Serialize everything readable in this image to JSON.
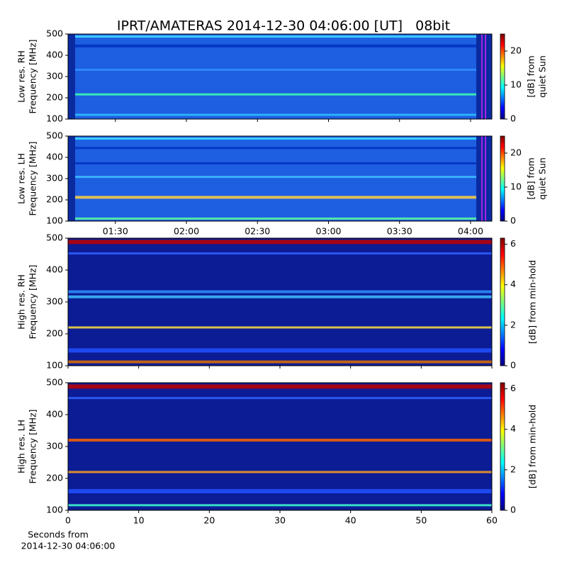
{
  "title": "IPRT/AMATERAS 2014-12-30 04:06:00 [UT]   08bit",
  "chart_data": [
    {
      "type": "spectrogram",
      "ylabel": [
        "Low res. RH",
        "Frequency [MHz]"
      ],
      "ylim": [
        100,
        500
      ],
      "yticks": [
        100,
        200,
        300,
        400,
        500
      ],
      "xlim": [
        70,
        249
      ],
      "xticks": [
        90,
        120,
        150,
        180,
        210,
        240
      ],
      "xtick_labels": false,
      "colorbar": {
        "label": [
          "[dB] from",
          "quiet Sun"
        ],
        "lim": [
          0,
          25
        ],
        "ticks": [
          0,
          10,
          20
        ]
      }
    },
    {
      "type": "spectrogram",
      "ylabel": [
        "Low res. LH",
        "Frequency [MHz]"
      ],
      "ylim": [
        100,
        500
      ],
      "yticks": [
        100,
        200,
        300,
        400,
        500
      ],
      "xlim": [
        70,
        249
      ],
      "xticks": [
        {
          "value": 90,
          "label": "01:30"
        },
        {
          "value": 120,
          "label": "02:00"
        },
        {
          "value": 150,
          "label": "02:30"
        },
        {
          "value": 180,
          "label": "03:00"
        },
        {
          "value": 210,
          "label": "03:30"
        },
        {
          "value": 240,
          "label": "04:00"
        }
      ],
      "xtick_labels": true,
      "colorbar": {
        "label": [
          "[dB] from",
          "quiet Sun"
        ],
        "lim": [
          0,
          25
        ],
        "ticks": [
          0,
          10,
          20
        ]
      }
    },
    {
      "type": "spectrogram",
      "ylabel": [
        "High res. RH",
        "Frequency [MHz]"
      ],
      "ylim": [
        100,
        500
      ],
      "yticks": [
        100,
        200,
        300,
        400,
        500
      ],
      "xlim": [
        0,
        60
      ],
      "xticks": [
        0,
        10,
        20,
        30,
        40,
        50,
        60
      ],
      "xtick_labels": false,
      "colorbar": {
        "label": [
          "[dB] from min-hold"
        ],
        "lim": [
          0,
          6.3
        ],
        "ticks": [
          0,
          2,
          4,
          6
        ]
      }
    },
    {
      "type": "spectrogram",
      "ylabel": [
        "High res. LH",
        "Frequency [MHz]"
      ],
      "ylim": [
        100,
        500
      ],
      "yticks": [
        100,
        200,
        300,
        400,
        500
      ],
      "xlim": [
        0,
        60
      ],
      "xticks": [
        0,
        10,
        20,
        30,
        40,
        50,
        60
      ],
      "xtick_labels": true,
      "xlabel": [
        "Seconds from",
        "2014-12-30 04:06:00"
      ],
      "colorbar": {
        "label": [
          "[dB] from min-hold"
        ],
        "lim": [
          0,
          6.3
        ],
        "ticks": [
          0,
          2,
          4,
          6
        ]
      }
    }
  ]
}
